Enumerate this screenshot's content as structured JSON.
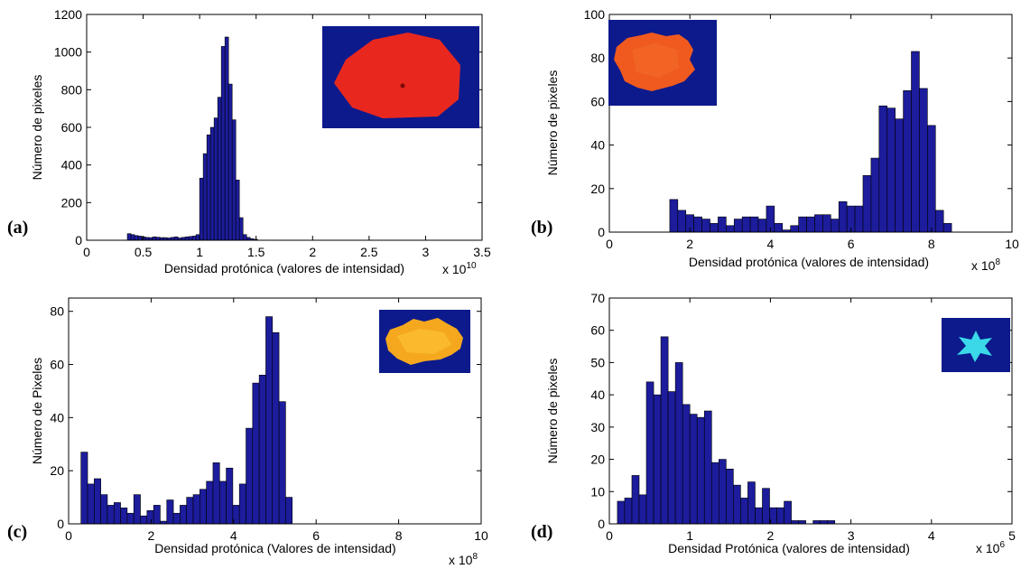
{
  "colors": {
    "bar_fill": "#1c1c9c",
    "bar_stroke": "#000000",
    "inset_background": "#0c1a8c"
  },
  "chart_data": [
    {
      "id": "a",
      "type": "bar",
      "panel_label": "(a)",
      "xlabel": "Densidad protónica (valores de intensidad)",
      "ylabel": "Número de pixeles",
      "exponent_label": "x 10",
      "exponent_power": "10",
      "xlim": [
        0,
        3.5
      ],
      "ylim": [
        0,
        1200
      ],
      "xticks": [
        0,
        0.5,
        1,
        1.5,
        2,
        2.5,
        3,
        3.5
      ],
      "xtick_labels": [
        "0",
        "0.5",
        "1",
        "1.5",
        "2",
        "2.5",
        "3",
        "3.5"
      ],
      "yticks": [
        0,
        200,
        400,
        600,
        800,
        1000,
        1200
      ],
      "ytick_labels": [
        "0",
        "200",
        "400",
        "600",
        "800",
        "1000",
        "1200"
      ],
      "bin_start": 0.36,
      "bin_width": 0.032,
      "values": [
        35,
        30,
        25,
        22,
        18,
        15,
        14,
        18,
        16,
        14,
        14,
        12,
        15,
        18,
        12,
        15,
        18,
        20,
        22,
        30,
        330,
        460,
        560,
        600,
        650,
        760,
        1030,
        1080,
        830,
        640,
        320,
        120,
        30,
        15,
        8,
        5
      ],
      "inset": {
        "description": "red region on dark blue background",
        "colors": [
          "#e8281e",
          "#0c1a8c"
        ]
      }
    },
    {
      "id": "b",
      "type": "bar",
      "panel_label": "(b)",
      "xlabel": "Densidad protónica (valores de intensidad)",
      "ylabel": "Número de pixeles",
      "exponent_label": "x 10",
      "exponent_power": "8",
      "xlim": [
        0,
        10
      ],
      "ylim": [
        0,
        100
      ],
      "xticks": [
        0,
        2,
        4,
        6,
        8,
        10
      ],
      "xtick_labels": [
        "0",
        "2",
        "4",
        "6",
        "8",
        "10"
      ],
      "yticks": [
        0,
        20,
        40,
        60,
        80,
        100
      ],
      "ytick_labels": [
        "0",
        "20",
        "40",
        "60",
        "80",
        "100"
      ],
      "bin_start": 1.5,
      "bin_width": 0.2,
      "values": [
        15,
        10,
        8,
        7,
        6,
        4,
        7,
        3,
        6,
        7,
        7,
        6,
        12,
        4,
        1,
        3,
        7,
        7,
        8,
        8,
        6,
        14,
        12,
        12,
        26,
        34,
        58,
        57,
        52,
        65,
        83,
        66,
        49,
        10,
        4
      ],
      "inset": {
        "description": "orange region on dark blue background",
        "colors": [
          "#f05a1e",
          "#0c1a8c"
        ]
      }
    },
    {
      "id": "c",
      "type": "bar",
      "panel_label": "(c)",
      "xlabel": "Densidad protónica (Valores de intensidad)",
      "ylabel": "Número de Pixeles",
      "exponent_label": "x 10",
      "exponent_power": "8",
      "xlim": [
        0,
        10
      ],
      "ylim": [
        0,
        85
      ],
      "xticks": [
        0,
        2,
        4,
        6,
        8,
        10
      ],
      "xtick_labels": [
        "0",
        "2",
        "4",
        "6",
        "8",
        "10"
      ],
      "yticks": [
        0,
        20,
        40,
        60,
        80
      ],
      "ytick_labels": [
        "0",
        "20",
        "40",
        "60",
        "80"
      ],
      "bin_start": 0.3,
      "bin_width": 0.16,
      "values": [
        27,
        15,
        17,
        11,
        7,
        8,
        6,
        4,
        11,
        3,
        5,
        7,
        1,
        9,
        4,
        7,
        10,
        11,
        13,
        16,
        23,
        16,
        21,
        7,
        15,
        36,
        53,
        56,
        78,
        72,
        46,
        10
      ],
      "inset": {
        "description": "yellow-orange region on dark blue background",
        "colors": [
          "#f5a81e",
          "#0c1a8c"
        ]
      }
    },
    {
      "id": "d",
      "type": "bar",
      "panel_label": "(d)",
      "xlabel": "Densidad Protónica (valores de intensidad)",
      "ylabel": "Número de pixeles",
      "exponent_label": "x 10",
      "exponent_power": "6",
      "xlim": [
        0,
        5
      ],
      "ylim": [
        0,
        70
      ],
      "xticks": [
        0,
        1,
        2,
        3,
        4,
        5
      ],
      "xtick_labels": [
        "0",
        "1",
        "2",
        "3",
        "4",
        "5"
      ],
      "yticks": [
        0,
        10,
        20,
        30,
        40,
        50,
        60,
        70
      ],
      "ytick_labels": [
        "0",
        "10",
        "20",
        "30",
        "40",
        "50",
        "60",
        "70"
      ],
      "bin_start": 0.1,
      "bin_width": 0.09,
      "values": [
        7,
        8,
        15,
        9,
        44,
        40,
        58,
        41,
        50,
        37,
        34,
        33,
        35,
        19,
        20,
        17,
        12,
        8,
        13,
        5,
        11,
        5,
        5,
        7,
        1,
        1,
        0,
        1,
        1,
        1
      ],
      "inset": {
        "description": "cyan star shape on dark blue background",
        "colors": [
          "#3ad8e8",
          "#0c1a8c"
        ]
      }
    }
  ]
}
